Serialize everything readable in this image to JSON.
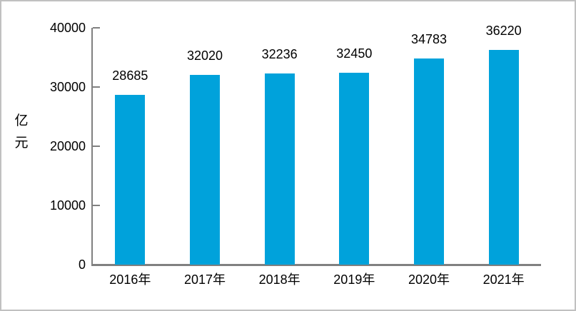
{
  "chart_data": {
    "type": "bar",
    "categories": [
      "2016年",
      "2017年",
      "2018年",
      "2019年",
      "2020年",
      "2021年"
    ],
    "values": [
      28685,
      32020,
      32236,
      32450,
      34783,
      36220
    ],
    "title": "",
    "xlabel": "",
    "ylabel": "亿元",
    "ylim": [
      0,
      40000
    ],
    "yticks": [
      0,
      10000,
      20000,
      30000,
      40000
    ],
    "grid": false,
    "legend_position": "none",
    "data_labels": true,
    "bar_color": "#00a2db",
    "axis_color": "#808080",
    "label_color": "#000000",
    "frame_border_color": "#c0c0c0",
    "background_color": "#ffffff"
  }
}
